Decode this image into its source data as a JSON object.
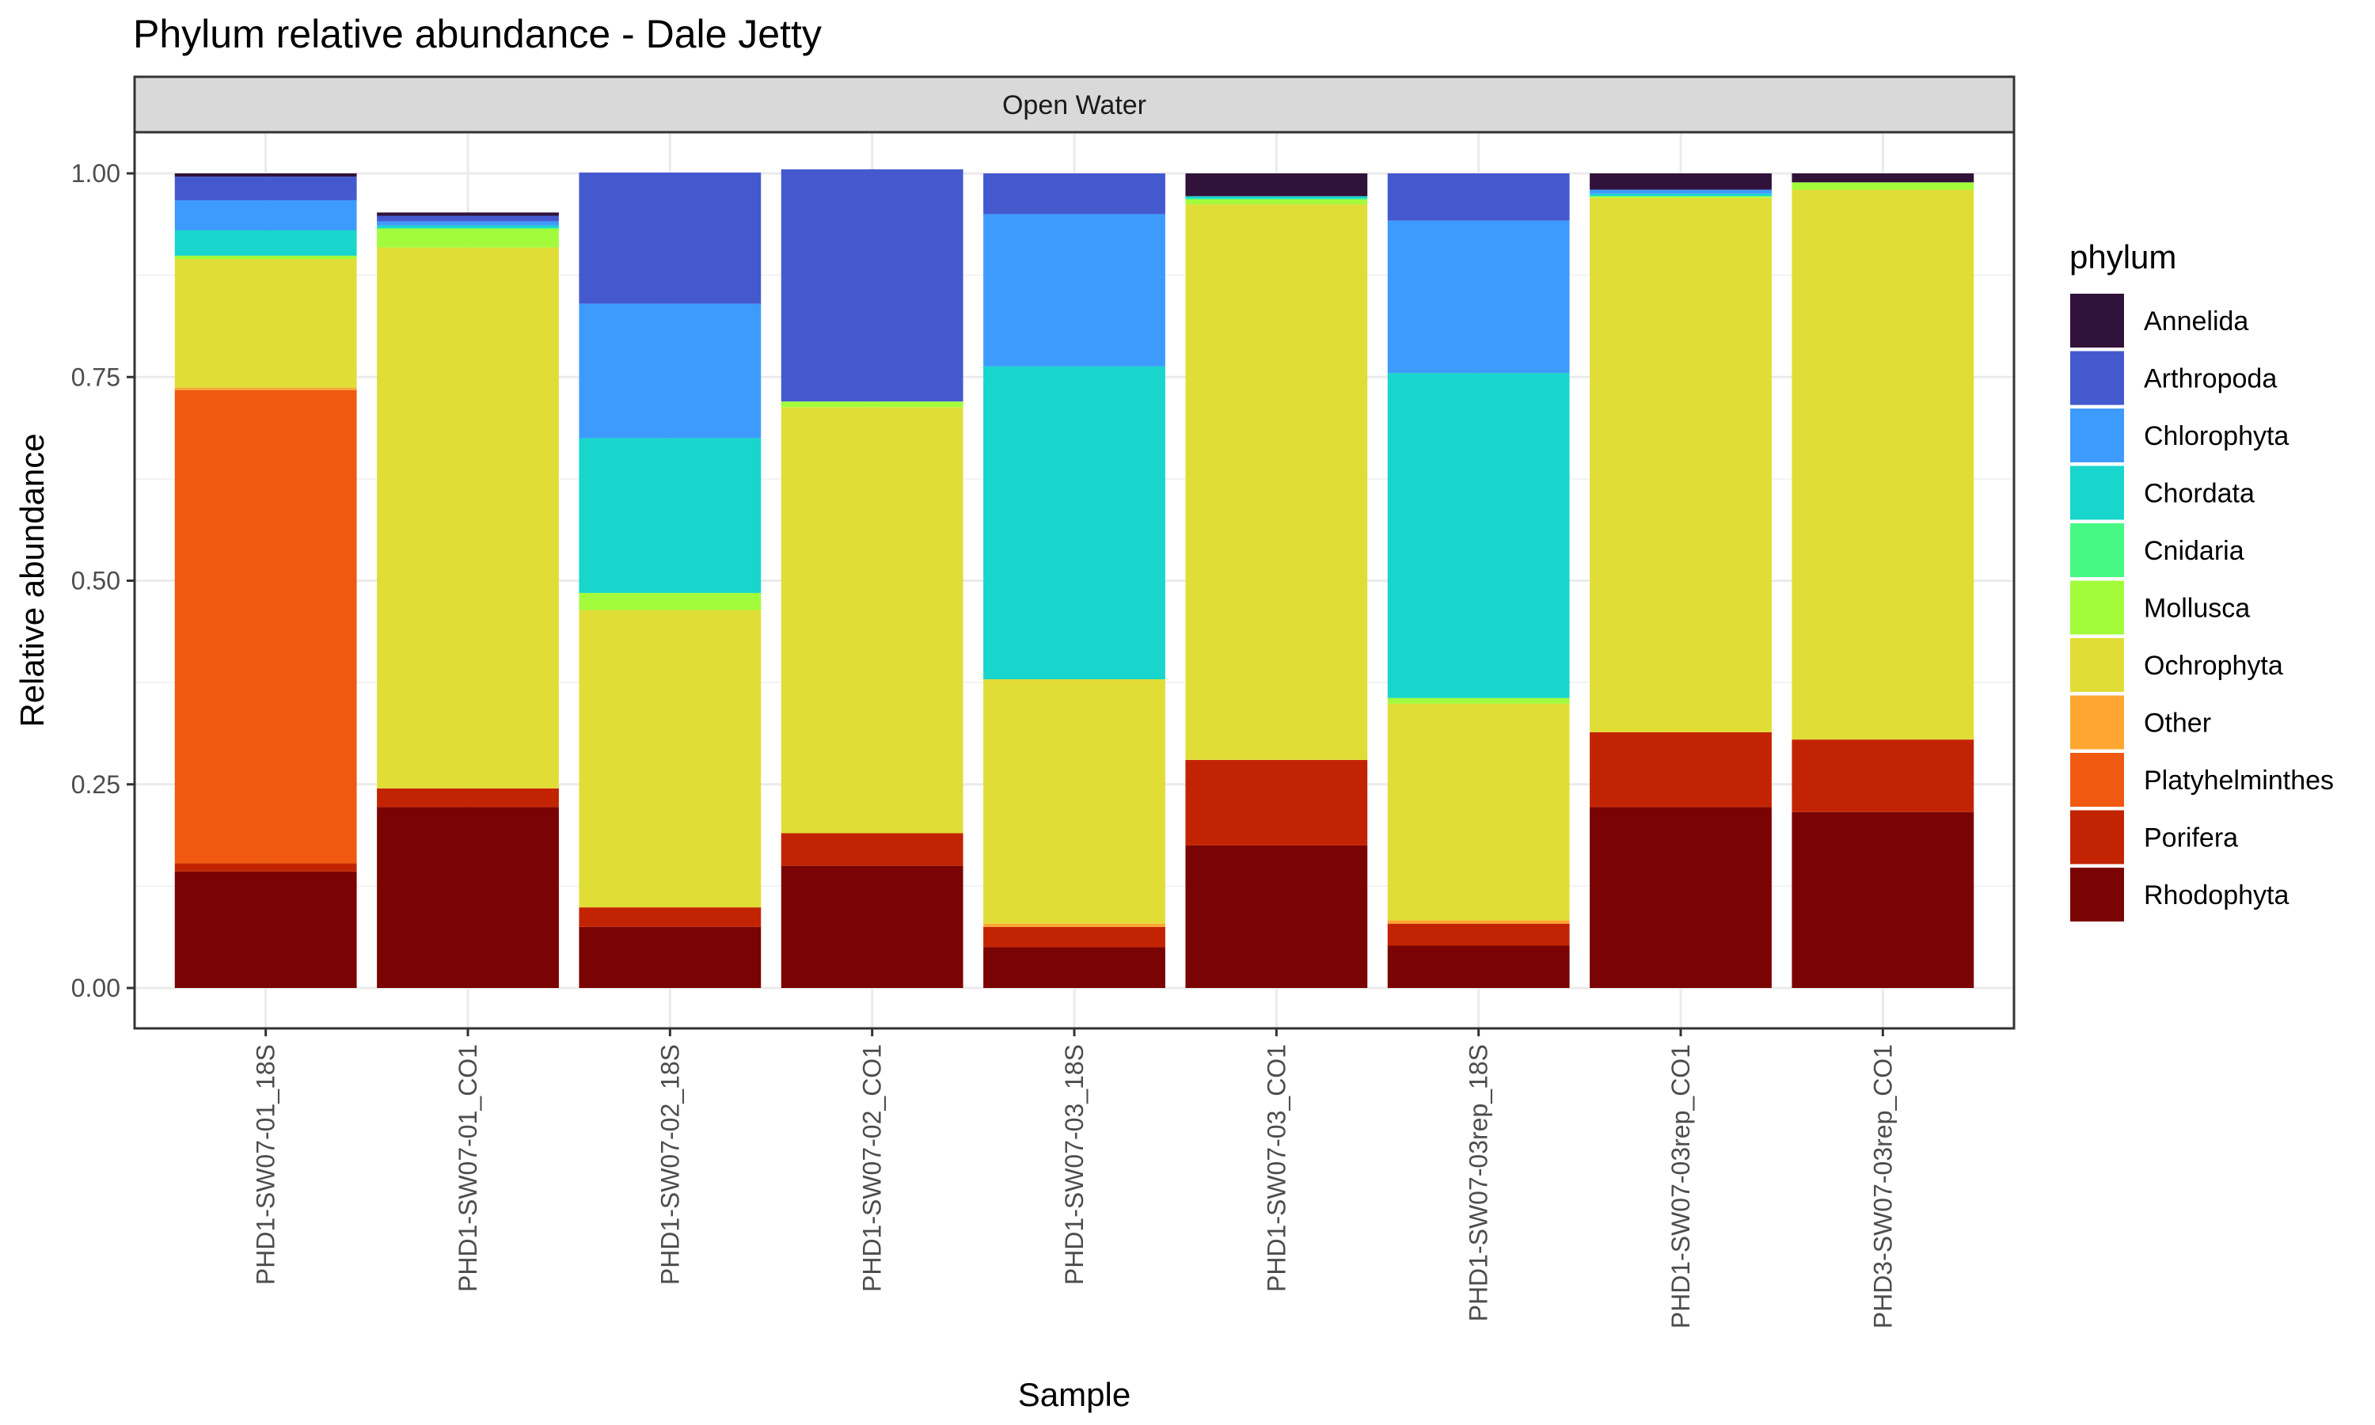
{
  "chart_data": {
    "type": "bar",
    "stacked": true,
    "title": "Phylum relative abundance - Dale Jetty",
    "facet": "Open Water",
    "xlabel": "Sample",
    "ylabel": "Relative abundance",
    "ylim": [
      0,
      1
    ],
    "yticks": [
      "0.00",
      "0.25",
      "0.50",
      "0.75",
      "1.00"
    ],
    "grid": true,
    "legend_title": "phylum",
    "legend_position": "right",
    "categories": [
      "PHD1-SW07-01_18S",
      "PHD1-SW07-01_CO1",
      "PHD1-SW07-02_18S",
      "PHD1-SW07-02_CO1",
      "PHD1-SW07-03_18S",
      "PHD1-SW07-03_CO1",
      "PHD1-SW07-03rep_18S",
      "PHD1-SW07-03rep_CO1",
      "PHD3-SW07-03rep_CO1"
    ],
    "series": [
      {
        "name": "Annelida",
        "color": "#30123b",
        "values": [
          0.004,
          0.004,
          0.0,
          0.0,
          0.0,
          0.028,
          0.0,
          0.02,
          0.011
        ]
      },
      {
        "name": "Arthropoda",
        "color": "#4559cf",
        "values": [
          0.029,
          0.007,
          0.161,
          0.285,
          0.05,
          0.0,
          0.058,
          0.0,
          0.0
        ]
      },
      {
        "name": "Chlorophyta",
        "color": "#3e9bfe",
        "values": [
          0.037,
          0.005,
          0.165,
          0.0,
          0.187,
          0.0,
          0.187,
          0.005,
          0.0
        ]
      },
      {
        "name": "Chordata",
        "color": "#18d6cb",
        "values": [
          0.031,
          0.003,
          0.19,
          0.0,
          0.384,
          0.003,
          0.399,
          0.003,
          0.0
        ]
      },
      {
        "name": "Cnidaria",
        "color": "#46f884",
        "values": [
          0.0,
          0.001,
          0.0,
          0.0,
          0.0,
          0.001,
          0.0,
          0.0,
          0.0
        ]
      },
      {
        "name": "Mollusca",
        "color": "#a2fc3c",
        "values": [
          0.004,
          0.023,
          0.021,
          0.007,
          0.0,
          0.006,
          0.007,
          0.002,
          0.009
        ]
      },
      {
        "name": "Ochrophyta",
        "color": "#e1dd37",
        "values": [
          0.158,
          0.664,
          0.365,
          0.523,
          0.3,
          0.682,
          0.266,
          0.656,
          0.675
        ]
      },
      {
        "name": "Other",
        "color": "#fea632",
        "values": [
          0.003,
          0.0,
          0.0,
          0.0,
          0.004,
          0.0,
          0.004,
          0.0,
          0.0
        ]
      },
      {
        "name": "Platyhelminthes",
        "color": "#ef5911",
        "values": [
          0.581,
          0.0,
          0.0,
          0.0,
          0.0,
          0.0,
          0.0,
          0.0,
          0.0
        ]
      },
      {
        "name": "Porifera",
        "color": "#c22403",
        "values": [
          0.01,
          0.023,
          0.024,
          0.04,
          0.025,
          0.105,
          0.027,
          0.092,
          0.089
        ]
      },
      {
        "name": "Rhodophyta",
        "color": "#7a0403",
        "values": [
          0.143,
          0.222,
          0.075,
          0.15,
          0.05,
          0.175,
          0.052,
          0.222,
          0.216
        ]
      }
    ]
  }
}
